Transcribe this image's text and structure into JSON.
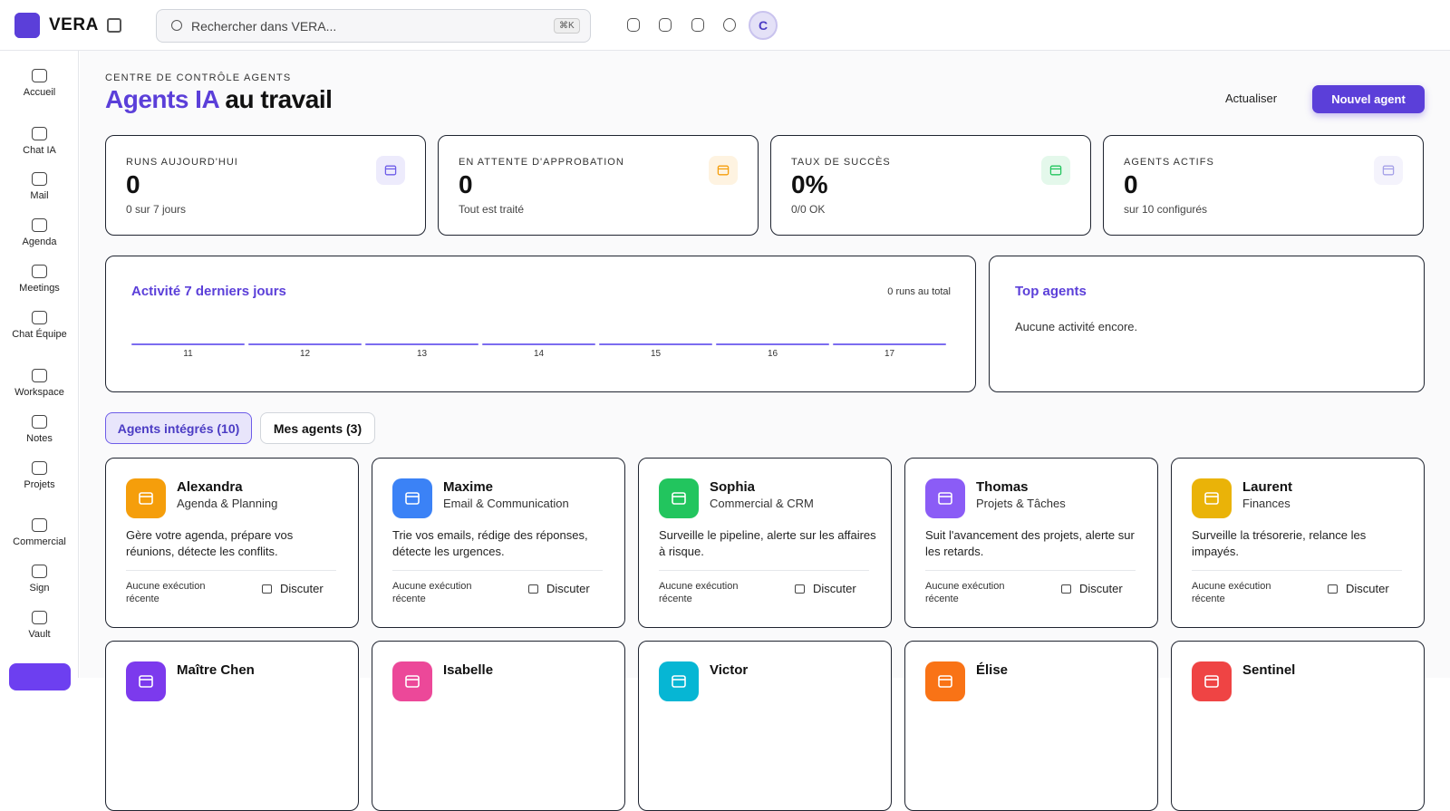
{
  "brand": "VERA",
  "search": {
    "placeholder": "Rechercher dans VERA...",
    "shortcut": "⌘K"
  },
  "avatar": "C",
  "sidebar": [
    "Accueil",
    "Chat IA",
    "Mail",
    "Agenda",
    "Meetings",
    "Chat Équipe",
    "Workspace",
    "Notes",
    "Projets",
    "Commercial",
    "Sign",
    "Vault"
  ],
  "header": {
    "eyebrow": "CENTRE DE CONTRÔLE AGENTS",
    "title_accent": "Agents IA",
    "title_rest": "au travail",
    "refresh": "Actualiser",
    "new_agent": "Nouvel agent"
  },
  "stats": [
    {
      "label": "RUNS AUJOURD'HUI",
      "value": "0",
      "sub": "0 sur 7 jours",
      "color": "#6d5ce8"
    },
    {
      "label": "EN ATTENTE D'APPROBATION",
      "value": "0",
      "sub": "Tout est traité",
      "color": "#f59e0b"
    },
    {
      "label": "TAUX DE SUCCÈS",
      "value": "0%",
      "sub": "0/0 OK",
      "color": "#22c55e"
    },
    {
      "label": "AGENTS ACTIFS",
      "value": "0",
      "sub": "sur 10 configurés",
      "color": "#a5a0e8"
    }
  ],
  "activity": {
    "title": "Activité 7 derniers jours",
    "total": "0 runs au total",
    "days": [
      "11",
      "12",
      "13",
      "14",
      "15",
      "16",
      "17"
    ],
    "values": [
      0,
      0,
      0,
      0,
      0,
      0,
      0
    ]
  },
  "top_agents": {
    "title": "Top agents",
    "empty": "Aucune activité encore."
  },
  "tabs": [
    "Agents intégrés (10)",
    "Mes agents (3)"
  ],
  "agents": [
    {
      "name": "Alexandra",
      "role": "Agenda & Planning",
      "description": "Gère votre agenda, prépare vos réunions, détecte les conflits.",
      "status": "Aucune exécution récente",
      "action": "Discuter",
      "color": "#f59e0b"
    },
    {
      "name": "Maxime",
      "role": "Email & Communication",
      "description": "Trie vos emails, rédige des réponses, détecte les urgences.",
      "status": "Aucune exécution récente",
      "action": "Discuter",
      "color": "#3b82f6"
    },
    {
      "name": "Sophia",
      "role": "Commercial & CRM",
      "description": "Surveille le pipeline, alerte sur les affaires à risque.",
      "status": "Aucune exécution récente",
      "action": "Discuter",
      "color": "#22c55e"
    },
    {
      "name": "Thomas",
      "role": "Projets & Tâches",
      "description": "Suit l'avancement des projets, alerte sur les retards.",
      "status": "Aucune exécution récente",
      "action": "Discuter",
      "color": "#8b5cf6"
    },
    {
      "name": "Laurent",
      "role": "Finances",
      "description": "Surveille la trésorerie, relance les impayés.",
      "status": "Aucune exécution récente",
      "action": "Discuter",
      "color": "#eab308"
    },
    {
      "name": "Maître Chen",
      "color": "#7c3aed"
    },
    {
      "name": "Isabelle",
      "color": "#ec4899"
    },
    {
      "name": "Victor",
      "color": "#06b6d4"
    },
    {
      "name": "Élise",
      "color": "#f97316"
    },
    {
      "name": "Sentinel",
      "color": "#ef4444"
    }
  ]
}
